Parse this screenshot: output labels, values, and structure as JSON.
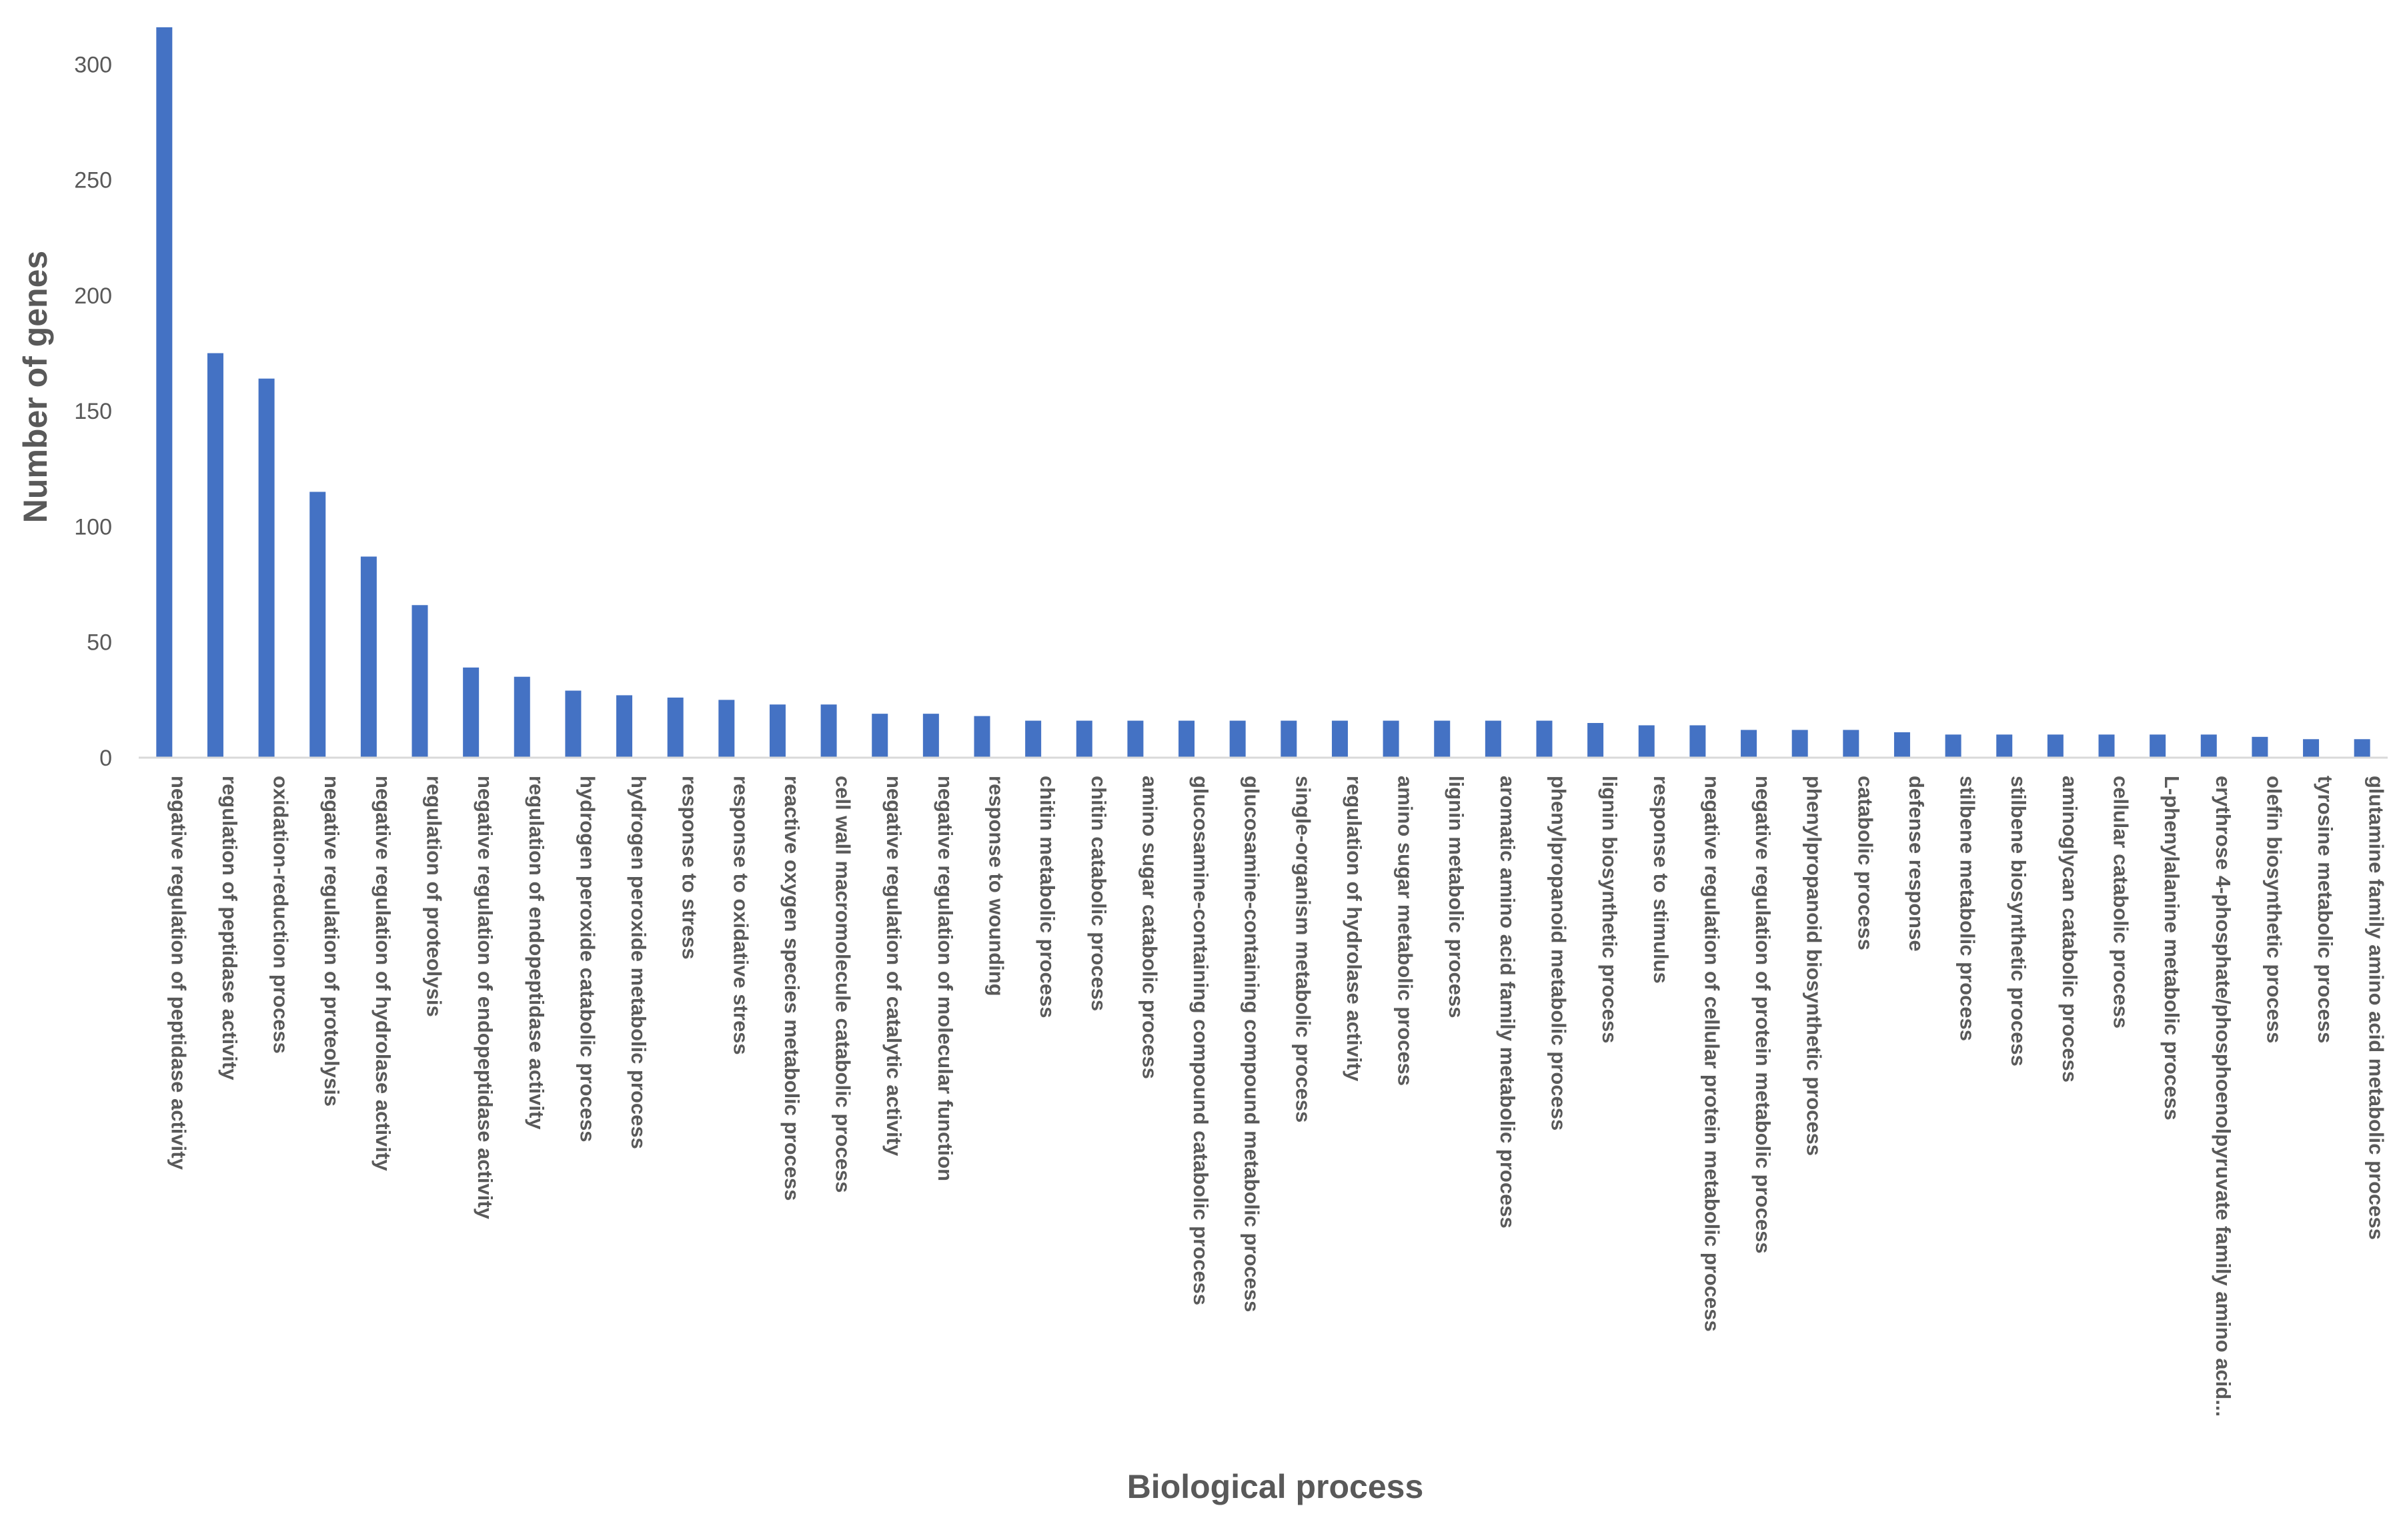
{
  "chart_data": {
    "type": "bar",
    "title": "",
    "xlabel": "Biological process",
    "ylabel": "Number of genes",
    "ylim": [
      0,
      320
    ],
    "yticks": [
      0,
      50,
      100,
      150,
      200,
      250,
      300
    ],
    "grid": false,
    "bar_color": "#4472c4",
    "categories": [
      "negative regulation of peptidase activity",
      "regulation of peptidase activity",
      "oxidation-reduction process",
      "negative regulation of proteolysis",
      "negative regulation of hydrolase activity",
      "regulation of proteolysis",
      "negative regulation of endopeptidase activity",
      "regulation of endopeptidase activity",
      "hydrogen peroxide catabolic process",
      "hydrogen peroxide metabolic process",
      "response to stress",
      "response to oxidative stress",
      "reactive oxygen species metabolic process",
      "cell wall macromolecule catabolic process",
      "negative regulation of catalytic activity",
      "negative regulation of molecular function",
      "response to wounding",
      "chitin metabolic process",
      "chitin catabolic process",
      "amino sugar catabolic process",
      "glucosamine-containing compound catabolic process",
      "glucosamine-containing compound metabolic process",
      "single-organism metabolic process",
      "regulation of hydrolase activity",
      "amino sugar metabolic process",
      "lignin metabolic process",
      "aromatic amino acid family metabolic process",
      "phenylpropanoid metabolic process",
      "lignin biosynthetic process",
      "response to stimulus",
      "negative regulation of cellular protein metabolic process",
      "negative regulation of protein metabolic process",
      "phenylpropanoid biosynthetic process",
      "catabolic process",
      "defense response",
      "stilbene metabolic process",
      "stilbene biosynthetic process",
      "aminoglycan catabolic process",
      "cellular catabolic process",
      "L-phenylalanine metabolic process",
      "erythrose 4-phosphate/phosphoenolpyruvate family amino acid...",
      "olefin biosynthetic process",
      "tyrosine metabolic process",
      "glutamine family amino acid metabolic process"
    ],
    "values": [
      316,
      175,
      164,
      115,
      87,
      66,
      39,
      35,
      29,
      27,
      26,
      25,
      23,
      23,
      19,
      19,
      18,
      16,
      16,
      16,
      16,
      16,
      16,
      16,
      16,
      16,
      16,
      16,
      15,
      14,
      14,
      12,
      12,
      12,
      11,
      10,
      10,
      10,
      10,
      10,
      10,
      9,
      8,
      8
    ]
  }
}
